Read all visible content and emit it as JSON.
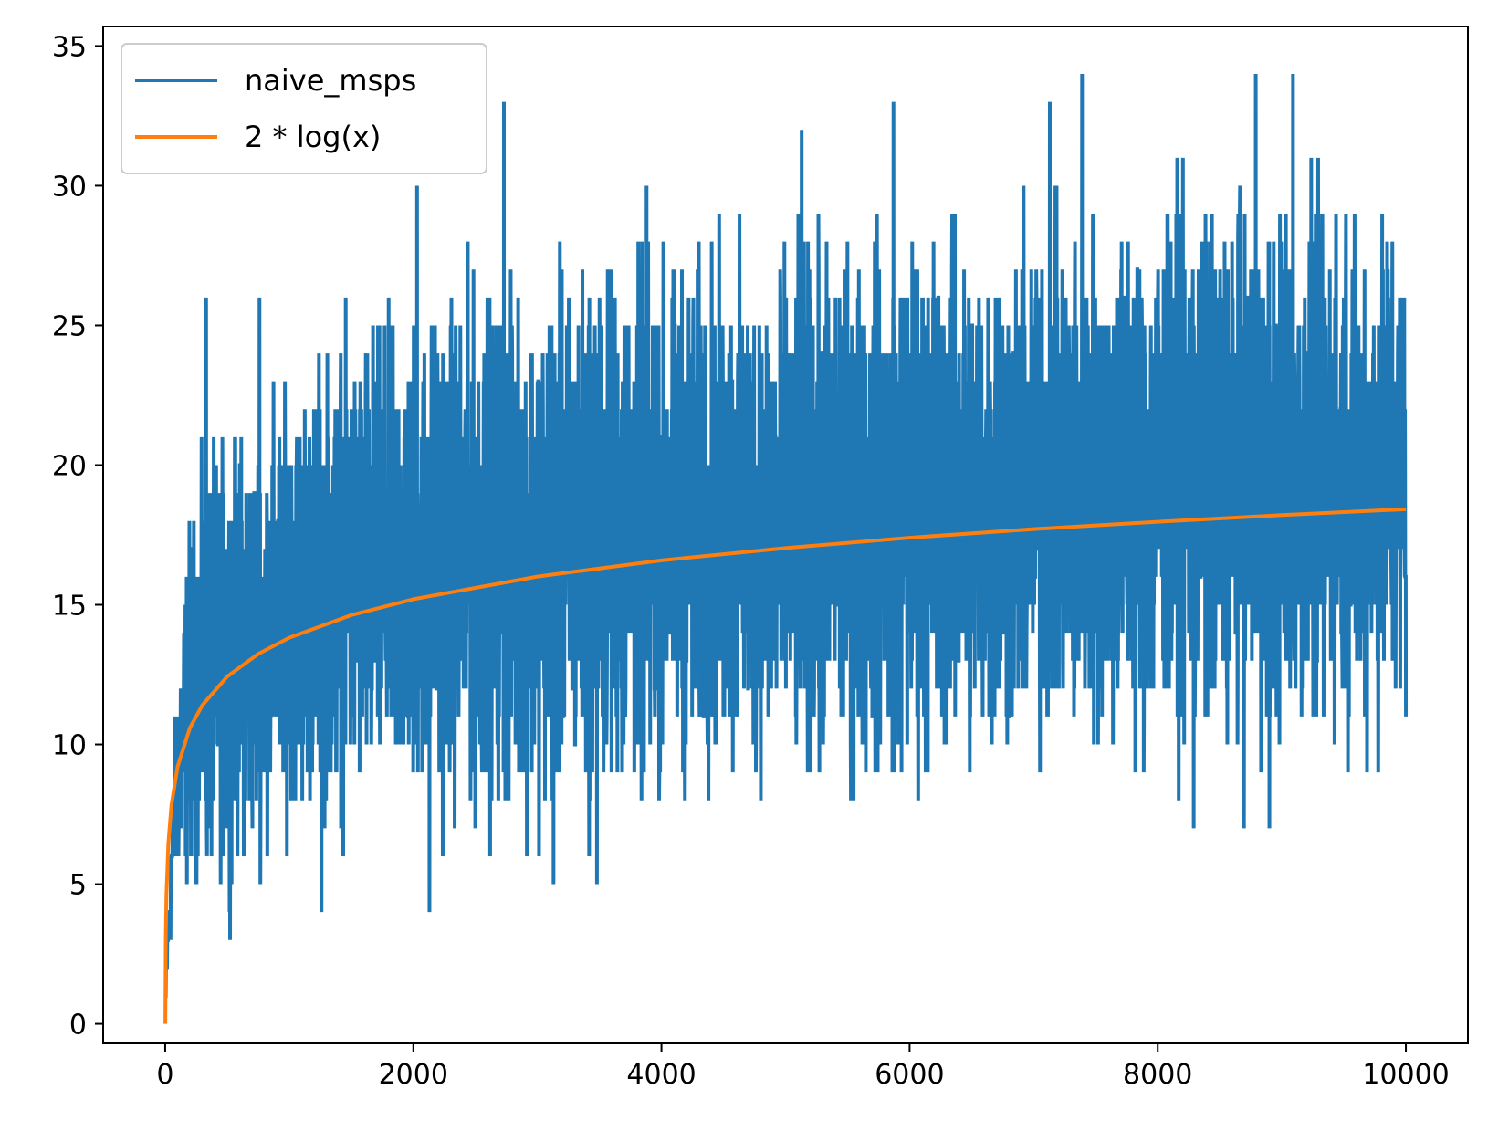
{
  "chart_data": {
    "type": "line",
    "title": "",
    "xlabel": "",
    "ylabel": "",
    "xlim": [
      -500,
      10500
    ],
    "ylim": [
      -0.7,
      35.7
    ],
    "x_ticks": [
      0,
      2000,
      4000,
      6000,
      8000,
      10000
    ],
    "y_ticks": [
      0,
      5,
      10,
      15,
      20,
      25,
      30,
      35
    ],
    "x_tick_labels": [
      "0",
      "2000",
      "4000",
      "6000",
      "8000",
      "10000"
    ],
    "y_tick_labels": [
      "0",
      "5",
      "10",
      "15",
      "20",
      "25",
      "30",
      "35"
    ],
    "grid": false,
    "legend_position": "upper left",
    "series": [
      {
        "name": "naive_msps",
        "color": "#1f77b4",
        "x_range": [
          1,
          10000
        ],
        "envelope_x": [
          1,
          50,
          100,
          200,
          300,
          500,
          750,
          1000,
          1500,
          2000,
          2500,
          3000,
          3500,
          4000,
          4500,
          5000,
          6000,
          7000,
          8000,
          9000,
          10000
        ],
        "envelope_low": [
          1,
          3,
          4,
          4,
          4,
          4,
          5,
          6,
          6,
          6,
          6,
          6,
          6,
          7,
          7,
          7,
          7,
          8,
          8,
          8,
          9
        ],
        "envelope_high": [
          1,
          8,
          14,
          19,
          21,
          22,
          23,
          24,
          26,
          27,
          28,
          28,
          29,
          29,
          29,
          29,
          30,
          30,
          31,
          31,
          31
        ],
        "peaks": [
          {
            "x": 330,
            "y": 26
          },
          {
            "x": 760,
            "y": 26
          },
          {
            "x": 2030,
            "y": 30
          },
          {
            "x": 2730,
            "y": 33
          },
          {
            "x": 3880,
            "y": 30
          },
          {
            "x": 5130,
            "y": 32
          },
          {
            "x": 5870,
            "y": 33
          },
          {
            "x": 7130,
            "y": 33
          },
          {
            "x": 7390,
            "y": 34
          },
          {
            "x": 8790,
            "y": 34
          },
          {
            "x": 9090,
            "y": 34
          }
        ],
        "troughs": [
          {
            "x": 1260,
            "y": 4
          },
          {
            "x": 2130,
            "y": 4
          },
          {
            "x": 3130,
            "y": 5
          },
          {
            "x": 3480,
            "y": 5
          },
          {
            "x": 8290,
            "y": 7
          },
          {
            "x": 8900,
            "y": 7
          }
        ],
        "end_value": 11
      },
      {
        "name": "2 * log(x)",
        "color": "#ff7f0e",
        "function": "2 * log(x)",
        "x": [
          1,
          5,
          10,
          25,
          50,
          100,
          200,
          300,
          500,
          750,
          1000,
          1500,
          2000,
          3000,
          4000,
          5000,
          6000,
          7000,
          8000,
          9000,
          10000
        ],
        "values": [
          0,
          3.22,
          4.61,
          6.44,
          7.82,
          9.21,
          10.6,
          11.41,
          12.43,
          13.24,
          13.82,
          14.63,
          15.2,
          16.01,
          16.59,
          17.03,
          17.4,
          17.71,
          17.97,
          18.21,
          18.42
        ]
      }
    ]
  }
}
